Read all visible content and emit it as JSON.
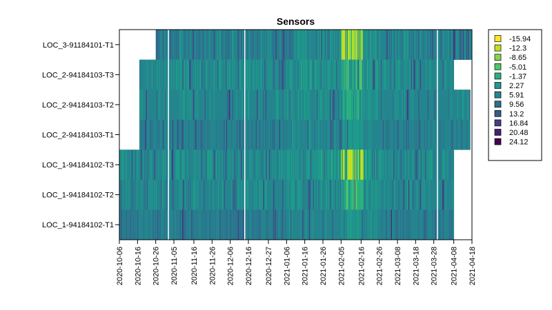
{
  "chart_data": {
    "type": "heatmap",
    "title": "Sensors",
    "xlabel": "",
    "ylabel": "",
    "x_ticks": [
      "2020-10-06",
      "2020-10-16",
      "2020-10-26",
      "2020-11-05",
      "2020-11-16",
      "2020-11-26",
      "2020-12-06",
      "2020-12-16",
      "2020-12-27",
      "2021-01-06",
      "2021-01-16",
      "2021-01-26",
      "2021-02-05",
      "2021-02-16",
      "2021-02-26",
      "2021-03-08",
      "2021-03-18",
      "2021-03-28",
      "2021-04-08",
      "2021-04-18"
    ],
    "xlim": [
      "2020-10-06",
      "2021-04-18"
    ],
    "rows": [
      {
        "label": "LOC_3-91184101-T1",
        "start": "2020-10-26",
        "end": "2021-04-18",
        "base": 6.5,
        "var": 3.5,
        "warm_spell": [
          -14,
          -8
        ]
      },
      {
        "label": "LOC_2-94184103-T3",
        "start": "2020-10-17",
        "end": "2021-04-08",
        "base": 5.0,
        "var": 3.0,
        "warm_spell": [
          -6,
          -2
        ]
      },
      {
        "label": "LOC_2-94184103-T2",
        "start": "2020-10-17",
        "end": "2021-04-17",
        "base": 5.5,
        "var": 2.0,
        "warm_spell": [
          -3,
          0
        ]
      },
      {
        "label": "LOC_2-94184103-T1",
        "start": "2020-10-17",
        "end": "2021-04-17",
        "base": 7.0,
        "var": 1.5,
        "warm_spell": [
          2,
          4
        ]
      },
      {
        "label": "LOC_1-94184102-T3",
        "start": "2020-10-06",
        "end": "2021-04-08",
        "base": 5.0,
        "var": 3.0,
        "warm_spell": [
          -14,
          -8
        ]
      },
      {
        "label": "LOC_1-94184102-T2",
        "start": "2020-10-06",
        "end": "2021-04-08",
        "base": 5.5,
        "var": 2.5,
        "warm_spell": [
          -5,
          -1
        ]
      },
      {
        "label": "LOC_1-94184102-T1",
        "start": "2020-10-06",
        "end": "2021-04-08",
        "base": 7.0,
        "var": 2.0,
        "warm_spell": [
          1,
          3
        ]
      }
    ],
    "gaps": [
      "2020-11-02",
      "2020-12-14",
      "2021-03-30"
    ],
    "legend": {
      "placement": "right",
      "entries": [
        {
          "label": "-15.94",
          "color": "#FDE725"
        },
        {
          "label": "-12.3",
          "color": "#C2DF23"
        },
        {
          "label": "-8.65",
          "color": "#85D54A"
        },
        {
          "label": "-5.01",
          "color": "#51C56A"
        },
        {
          "label": "-1.37",
          "color": "#2AB07F"
        },
        {
          "label": "2.27",
          "color": "#1E9B8A"
        },
        {
          "label": "5.91",
          "color": "#25858E"
        },
        {
          "label": "9.56",
          "color": "#2D708E"
        },
        {
          "label": "13.2",
          "color": "#38598C"
        },
        {
          "label": "16.84",
          "color": "#433E85"
        },
        {
          "label": "20.48",
          "color": "#482173"
        },
        {
          "label": "24.12",
          "color": "#440154"
        }
      ]
    }
  }
}
